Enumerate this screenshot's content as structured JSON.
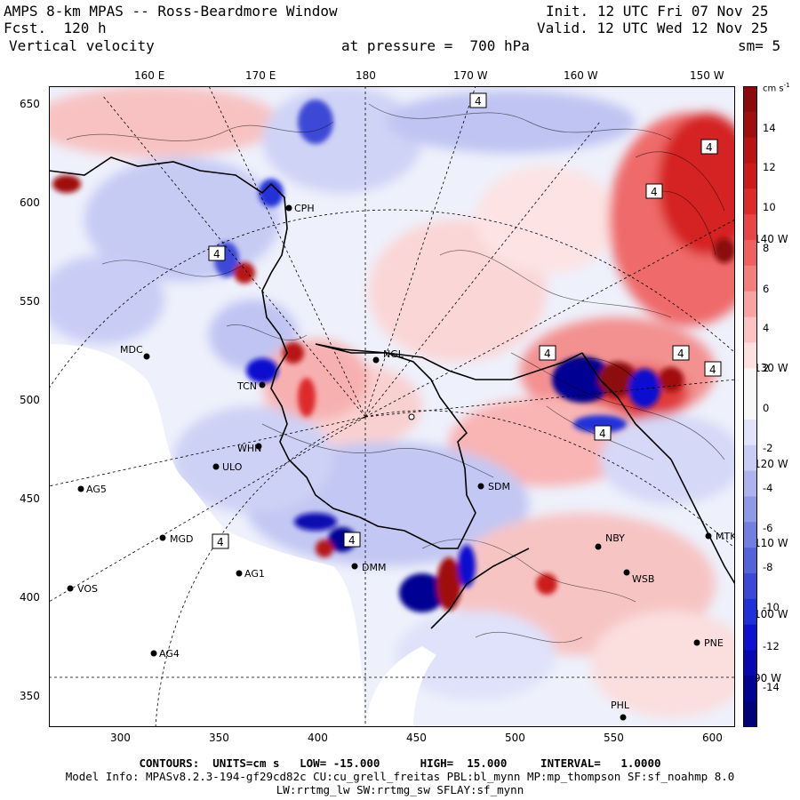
{
  "header": {
    "title": "AMPS 8-km MPAS -- Ross-Beardmore Window",
    "fcst_label": "Fcst.",
    "fcst_value": "120 h",
    "field": "Vertical velocity",
    "pressure_label": "at pressure =",
    "pressure_value": "700 hPa",
    "init_label": "Init.",
    "init_value": "12 UTC Fri 07 Nov 25",
    "valid_label": "Valid.",
    "valid_value": "12 UTC Wed 12 Nov 25",
    "smooth": "sm= 5"
  },
  "top_ticks": [
    "160 E",
    "170 E",
    "180",
    "170 W",
    "160 W",
    "150 W"
  ],
  "right_lon_labels": [
    "140 W",
    "130 W",
    "120 W",
    "110 W",
    "100 W",
    "90 W"
  ],
  "x_ticks": [
    "300",
    "350",
    "400",
    "450",
    "500",
    "550",
    "600"
  ],
  "y_ticks": [
    "650",
    "600",
    "550",
    "500",
    "450",
    "400",
    "350"
  ],
  "stations": [
    {
      "id": "CPH"
    },
    {
      "id": "MDC"
    },
    {
      "id": "NGL"
    },
    {
      "id": "TCN"
    },
    {
      "id": "WHN"
    },
    {
      "id": "ULO"
    },
    {
      "id": "AG5"
    },
    {
      "id": "SDM"
    },
    {
      "id": "MGD"
    },
    {
      "id": "DMM"
    },
    {
      "id": "NBY"
    },
    {
      "id": "MTK"
    },
    {
      "id": "AG1"
    },
    {
      "id": "WSB"
    },
    {
      "id": "VOS"
    },
    {
      "id": "PNE"
    },
    {
      "id": "AG4"
    },
    {
      "id": "PHL"
    }
  ],
  "contour_box_label": "4",
  "colorbar": {
    "units": "cm s-1",
    "units_text": "cm s",
    "units_exp": "-1",
    "labels": [
      "14",
      "12",
      "10",
      "8",
      "6",
      "4",
      "2",
      "0",
      "-2",
      "-4",
      "-6",
      "-8",
      "-10",
      "-12",
      "-14"
    ],
    "colors": [
      "#8b0a0a",
      "#a00f0f",
      "#b81414",
      "#cc1a1a",
      "#dd2a2a",
      "#e84545",
      "#f06060",
      "#f47e7e",
      "#f8a2a2",
      "#fbc3c3",
      "#fde0e0",
      "#f7f7f7",
      "#f7f7f7",
      "#e1e3fb",
      "#c9ccf5",
      "#adb3ee",
      "#9098e8",
      "#727fe1",
      "#5563d8",
      "#3c48d6",
      "#2030d8",
      "#1010d0",
      "#0808b0",
      "#030392",
      "#02027a"
    ]
  },
  "footer": {
    "line1": "CONTOURS:  UNITS=cm s   LOW= -15.000      HIGH=  15.000     INTERVAL=   1.0000",
    "line2": "Model Info: MPASv8.2.3-194-gf29cd82c CU:cu_grell_freitas PBL:bl_mynn MP:mp_thompson SF:sf_noahmp 8.0",
    "line3": "LW:rrtmg_lw SW:rrtmg_sw SFLAY:sf_mynn"
  }
}
